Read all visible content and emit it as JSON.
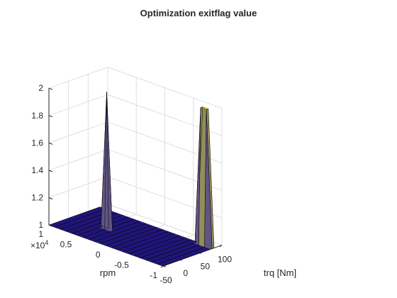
{
  "chart_data": {
    "type": "surface",
    "title": "Optimization exitflag value",
    "xlabel": "trq [Nm]",
    "ylabel": "rpm",
    "y_exponent_label": "×10",
    "y_exponent_power": "4",
    "xlim": [
      -50,
      100
    ],
    "ylim": [
      -10000,
      10000
    ],
    "zlim": [
      1,
      2
    ],
    "x_ticks": [
      -50,
      0,
      50,
      100
    ],
    "x_tick_labels": [
      "-50",
      "0",
      "50",
      "100"
    ],
    "y_ticks": [
      -10000,
      -5000,
      0,
      5000,
      10000
    ],
    "y_tick_labels": [
      "-1",
      "-0.5",
      "0",
      "0.5",
      "1"
    ],
    "z_ticks": [
      1,
      1.2,
      1.4,
      1.6,
      1.8,
      2
    ],
    "z_tick_labels": [
      "1",
      "1.2",
      "1.4",
      "1.6",
      "1.8",
      "2"
    ],
    "grid": true,
    "surface_color_low": "#2d1ea8",
    "surface_color_high": "#f9fb0e",
    "edge_color": "#000000",
    "grid_x_range": [
      -50,
      80
    ],
    "grid_y_range": [
      -10000,
      10000
    ],
    "grid_x_count": 27,
    "grid_y_count": 21,
    "peaks": [
      {
        "trq": 75,
        "rpm": -8000,
        "value": 2
      },
      {
        "trq": 80,
        "rpm": -8000,
        "value": 2
      },
      {
        "trq": 75,
        "rpm": -9000,
        "value": 2
      },
      {
        "trq": 80,
        "rpm": -9000,
        "value": 2
      },
      {
        "trq": 10,
        "rpm": 4000,
        "value": 2
      }
    ],
    "baseline_value": 1
  }
}
